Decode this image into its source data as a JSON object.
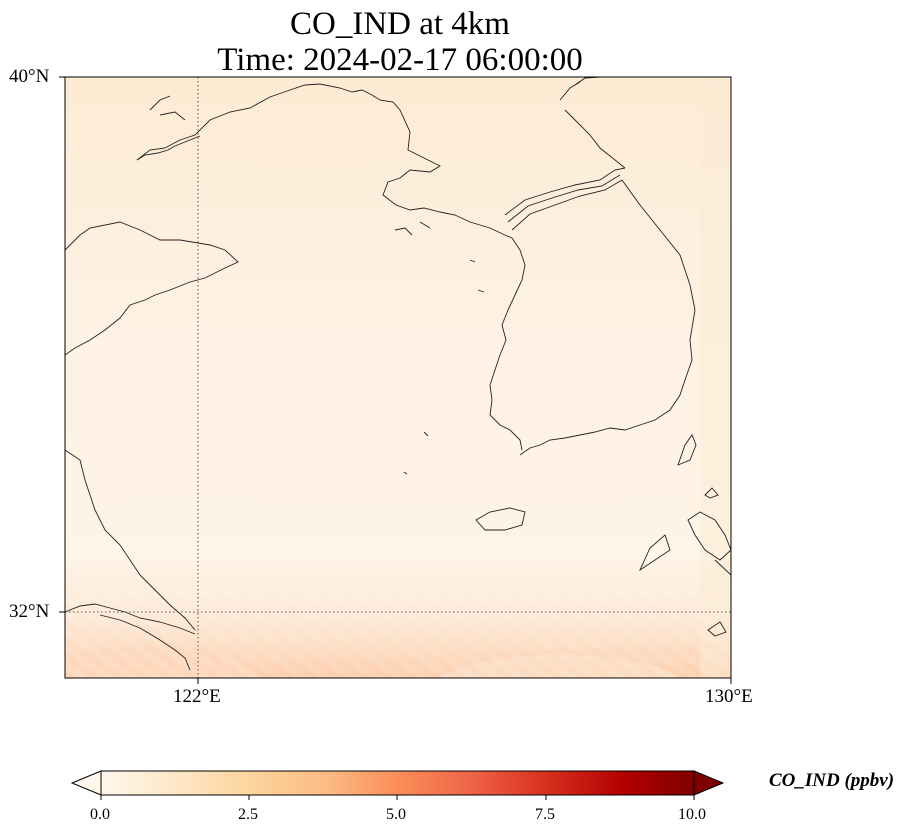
{
  "title": {
    "line1": "CO_IND at 4km",
    "line2": "Time: 2024-02-17 06:00:00"
  },
  "axes": {
    "lat_ticks": [
      "40°N",
      "32°N"
    ],
    "lon_ticks": [
      "122°E",
      "130°E"
    ]
  },
  "colorbar": {
    "label": "CO_IND (ppbv)",
    "ticks": [
      "0.0",
      "2.5",
      "5.0",
      "7.5",
      "10.0"
    ],
    "range": [
      0,
      10
    ],
    "colormap": "OrRd",
    "extend": "both"
  },
  "map": {
    "extent": {
      "lon": [
        120,
        130
      ],
      "lat": [
        31,
        40
      ]
    },
    "gridlines": {
      "lon": 122,
      "lat": 32,
      "style": "dotted"
    },
    "coastline_color": "#000000",
    "high_concentration_region": "south edge near 31°N"
  }
}
